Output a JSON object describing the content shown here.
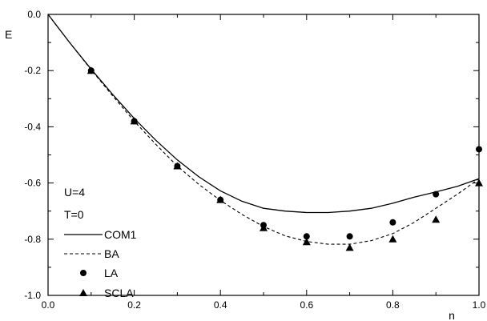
{
  "chart_data": {
    "type": "line",
    "xlabel": "n",
    "ylabel": "E",
    "xlim": [
      0.0,
      1.0
    ],
    "ylim": [
      -1.0,
      0.0
    ],
    "xticks": [
      "0.0",
      "0.2",
      "0.4",
      "0.6",
      "0.8",
      "1.0"
    ],
    "yticks": [
      "0.0",
      "-0.2",
      "-0.4",
      "-0.6",
      "-0.8",
      "-1.0"
    ],
    "grid": false,
    "legend_placement": "lower-left",
    "annotations": [
      "U=4",
      "T=0"
    ],
    "series": [
      {
        "name": "COM1",
        "style": "solid-line",
        "x": [
          0.0,
          0.05,
          0.1,
          0.15,
          0.2,
          0.25,
          0.3,
          0.35,
          0.4,
          0.45,
          0.5,
          0.55,
          0.6,
          0.65,
          0.7,
          0.75,
          0.8,
          0.85,
          0.9,
          0.95,
          1.0
        ],
        "y": [
          0.0,
          -0.1,
          -0.195,
          -0.285,
          -0.37,
          -0.448,
          -0.518,
          -0.578,
          -0.628,
          -0.665,
          -0.69,
          -0.7,
          -0.705,
          -0.705,
          -0.7,
          -0.69,
          -0.672,
          -0.65,
          -0.632,
          -0.612,
          -0.585
        ]
      },
      {
        "name": "BA",
        "style": "dashed-line",
        "x": [
          0.0,
          0.05,
          0.1,
          0.15,
          0.2,
          0.25,
          0.3,
          0.35,
          0.4,
          0.45,
          0.5,
          0.55,
          0.6,
          0.65,
          0.7,
          0.75,
          0.8,
          0.85,
          0.9,
          0.95,
          1.0
        ],
        "y": [
          0.0,
          -0.1,
          -0.197,
          -0.29,
          -0.38,
          -0.462,
          -0.54,
          -0.605,
          -0.662,
          -0.712,
          -0.755,
          -0.788,
          -0.808,
          -0.818,
          -0.818,
          -0.805,
          -0.78,
          -0.74,
          -0.69,
          -0.64,
          -0.585
        ]
      },
      {
        "name": "LA",
        "style": "circle-markers",
        "x": [
          0.1,
          0.2,
          0.3,
          0.4,
          0.5,
          0.6,
          0.7,
          0.8,
          0.9,
          1.0
        ],
        "y": [
          -0.2,
          -0.38,
          -0.54,
          -0.66,
          -0.75,
          -0.79,
          -0.79,
          -0.74,
          -0.64,
          -0.48
        ]
      },
      {
        "name": "SCLA",
        "style": "triangle-markers",
        "x": [
          0.1,
          0.2,
          0.3,
          0.4,
          0.5,
          0.6,
          0.7,
          0.8,
          0.9,
          1.0
        ],
        "y": [
          -0.2,
          -0.38,
          -0.54,
          -0.66,
          -0.76,
          -0.81,
          -0.83,
          -0.8,
          -0.73,
          -0.6
        ]
      }
    ]
  }
}
